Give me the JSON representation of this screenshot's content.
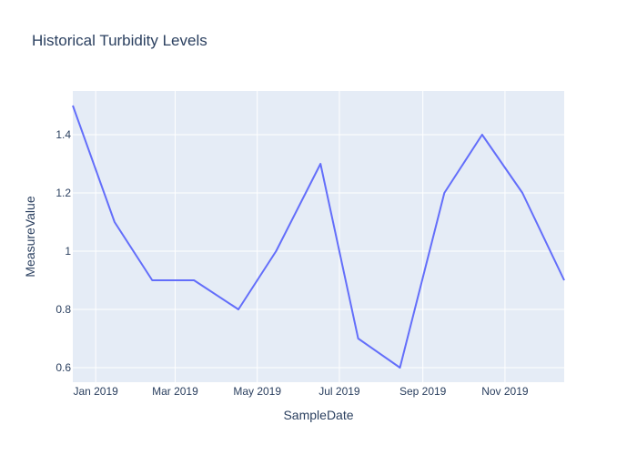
{
  "chart_data": {
    "type": "line",
    "title": "Historical Turbidity Levels",
    "xlabel": "SampleDate",
    "ylabel": "MeasureValue",
    "x_tick_labels": [
      "Jan 2019",
      "Mar 2019",
      "May 2019",
      "Jul 2019",
      "Sep 2019",
      "Nov 2019"
    ],
    "y_tick_labels": [
      "0.6",
      "0.8",
      "1",
      "1.2",
      "1.4"
    ],
    "y_ticks": [
      0.6,
      0.8,
      1.0,
      1.2,
      1.4
    ],
    "x_ticks": [
      "2019-01-01",
      "2019-03-01",
      "2019-05-01",
      "2019-07-01",
      "2019-09-01",
      "2019-11-01"
    ],
    "xlim": [
      "2018-12-15",
      "2019-12-15"
    ],
    "ylim": [
      0.55,
      1.55
    ],
    "grid": true,
    "series": [
      {
        "color": "#636efa",
        "x": [
          "2018-12-15",
          "2019-01-15",
          "2019-02-12",
          "2019-03-15",
          "2019-04-17",
          "2019-05-15",
          "2019-06-17",
          "2019-07-15",
          "2019-08-15",
          "2019-09-17",
          "2019-10-15",
          "2019-11-14",
          "2019-12-15"
        ],
        "y": [
          1.5,
          1.1,
          0.9,
          0.9,
          0.8,
          1.0,
          1.3,
          0.7,
          0.6,
          1.2,
          1.4,
          1.2,
          0.9
        ]
      }
    ],
    "colors": {
      "plot_bg": "#e5ecf6",
      "grid": "#ffffff",
      "text": "#2a3f5f"
    }
  }
}
